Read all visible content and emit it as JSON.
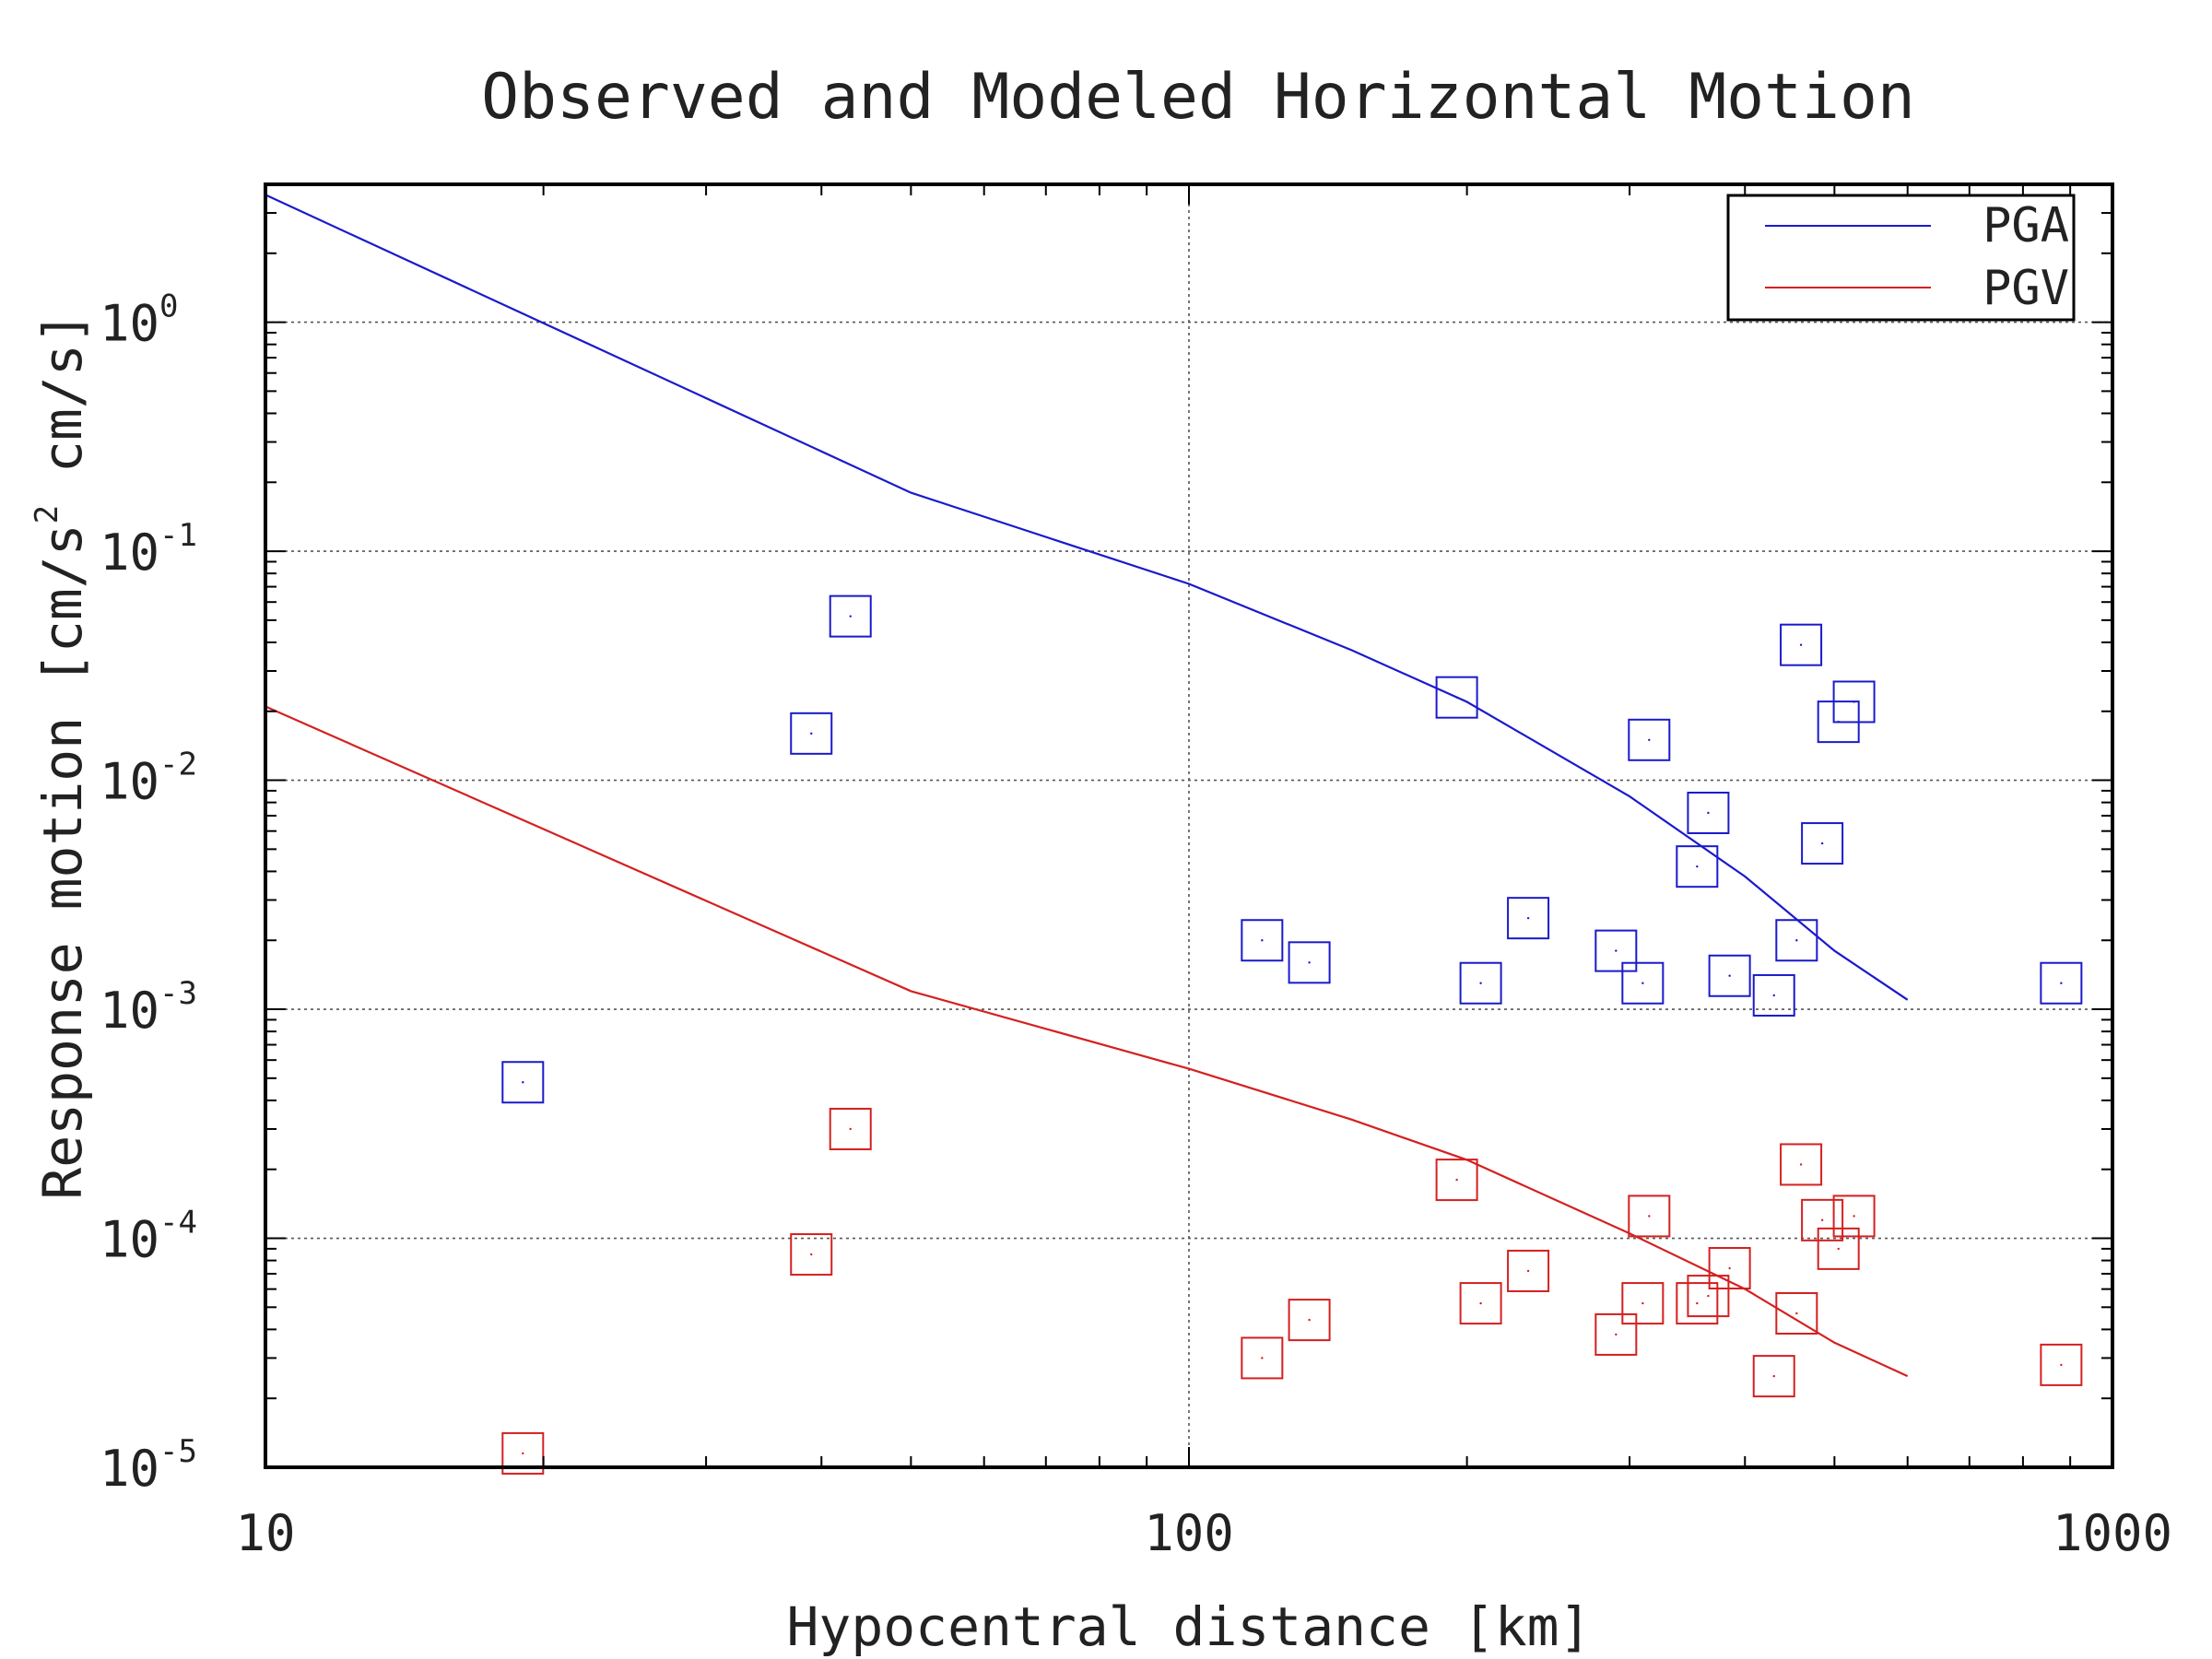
{
  "chart_data": {
    "type": "scatter",
    "title": "Observed and Modeled Horizontal Motion",
    "xlabel": "Hypocentral distance [km]",
    "ylabel_parts": [
      "Response motion [cm/s",
      "2",
      " cm/s]"
    ],
    "x_scale": "log",
    "y_scale": "log",
    "xlim": [
      10,
      1000
    ],
    "ylim": [
      1e-05,
      4
    ],
    "grid": true,
    "legend_position": "top-right",
    "x_ticks": [
      {
        "value": 10,
        "label": "10"
      },
      {
        "value": 100,
        "label": "100"
      },
      {
        "value": 1000,
        "label": "1000"
      }
    ],
    "y_ticks": [
      {
        "value": 1,
        "base": "10",
        "exp": "0"
      },
      {
        "value": 0.1,
        "base": "10",
        "exp": "-1"
      },
      {
        "value": 0.01,
        "base": "10",
        "exp": "-2"
      },
      {
        "value": 0.001,
        "base": "10",
        "exp": "-3"
      },
      {
        "value": 0.0001,
        "base": "10",
        "exp": "-4"
      },
      {
        "value": 1e-05,
        "base": "10",
        "exp": "-5"
      }
    ],
    "lines": [
      {
        "name": "PGA",
        "color": "#1a1acc",
        "x": [
          10,
          50,
          100,
          150,
          200,
          300,
          400,
          500,
          600
        ],
        "y": [
          3.6,
          0.18,
          0.072,
          0.037,
          0.022,
          0.0085,
          0.0038,
          0.0018,
          0.0011
        ]
      },
      {
        "name": "PGV",
        "color": "#d42020",
        "x": [
          10,
          50,
          100,
          150,
          200,
          300,
          400,
          500,
          600
        ],
        "y": [
          0.021,
          0.0012,
          0.00055,
          0.00033,
          0.00022,
          0.000105,
          6e-05,
          3.5e-05,
          2.5e-05
        ]
      }
    ],
    "observations": [
      {
        "name": "PGA",
        "color": "#1a1acc",
        "x": [
          19,
          39,
          43,
          120,
          135,
          195,
          207,
          233,
          290,
          310,
          315,
          355,
          365,
          385,
          430,
          455,
          460,
          485,
          505,
          525,
          880
        ],
        "y": [
          0.00048,
          0.016,
          0.052,
          0.002,
          0.0016,
          0.023,
          0.0013,
          0.0025,
          0.0018,
          0.0013,
          0.015,
          0.0042,
          0.0072,
          0.0014,
          0.00115,
          0.002,
          0.039,
          0.0053,
          0.018,
          0.022,
          0.0013
        ]
      },
      {
        "name": "PGV",
        "color": "#d42020",
        "x": [
          19,
          39,
          43,
          120,
          135,
          195,
          207,
          233,
          290,
          310,
          315,
          355,
          365,
          385,
          430,
          455,
          460,
          485,
          505,
          525,
          880
        ],
        "y": [
          1.15e-05,
          8.5e-05,
          0.0003,
          3e-05,
          4.4e-05,
          0.00018,
          5.2e-05,
          7.2e-05,
          3.8e-05,
          5.2e-05,
          0.000125,
          5.2e-05,
          5.6e-05,
          7.4e-05,
          2.5e-05,
          4.7e-05,
          0.00021,
          0.00012,
          9e-05,
          0.000125,
          2.8e-05
        ]
      }
    ],
    "legend": [
      {
        "label": "PGA",
        "color": "#1a1acc"
      },
      {
        "label": "PGV",
        "color": "#d42020"
      }
    ]
  }
}
